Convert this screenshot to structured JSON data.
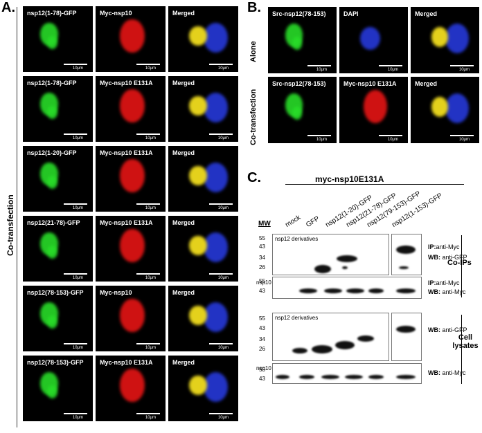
{
  "panels": {
    "a": "A.",
    "b": "B.",
    "c": "C."
  },
  "panel_a": {
    "side_label": "Co-transfection",
    "scale": "10μm",
    "rows": [
      [
        "nsp12(1-78)-GFP",
        "Myc-nsp10",
        "Merged"
      ],
      [
        "nsp12(1-78)-GFP",
        "Myc-nsp10 E131A",
        "Merged"
      ],
      [
        "nsp12(1-20)-GFP",
        "Myc-nsp10 E131A",
        "Merged"
      ],
      [
        "nsp12(21-78)-GFP",
        "Myc-nsp10 E131A",
        "Merged"
      ],
      [
        "nsp12(78-153)-GFP",
        "Myc-nsp10",
        "Merged"
      ],
      [
        "nsp12(78-153)-GFP",
        "Myc-nsp10 E131A",
        "Merged"
      ]
    ]
  },
  "panel_b": {
    "row_labels": [
      "Alone",
      "Co-transfection"
    ],
    "rows": [
      [
        "Src-nsp12(78-153)",
        "DAPI",
        "Merged"
      ],
      [
        "Src-nsp12(78-153)",
        "Myc-nsp10 E131A",
        "Merged"
      ]
    ],
    "scale": "10μm"
  },
  "panel_c": {
    "header": "myc-nsp10E131A",
    "mw_label": "MW",
    "lanes": [
      "mock",
      "GFP",
      "nsp12(1-20)-GFP",
      "nsp12(21-78)-GFP",
      "nsp12(79-153)-GFP",
      "nsp12(1-153)-GFP"
    ],
    "blots": [
      {
        "inner_label": "nsp12 derivatives",
        "markers": [
          "55",
          "43",
          "34",
          "26"
        ],
        "ip": "IP:",
        "ip_text": "anti-Myc",
        "wb": "WB:",
        "wb_text": "anti-GFP"
      },
      {
        "inner_label": "nsp10",
        "markers": [
          "55",
          "43"
        ],
        "ip": "IP:",
        "ip_text": "anti-Myc",
        "wb": "WB:",
        "wb_text": "anti-Myc"
      },
      {
        "inner_label": "nsp12 derivatives",
        "markers": [
          "55",
          "43",
          "34",
          "26"
        ],
        "wb": "WB:",
        "wb_text": "anti-GFP"
      },
      {
        "inner_label": "nsp10",
        "markers": [
          "55",
          "43"
        ],
        "wb": "WB:",
        "wb_text": "anti-Myc"
      }
    ],
    "group_labels": [
      "Co-IPs",
      "Cell lysates"
    ]
  }
}
